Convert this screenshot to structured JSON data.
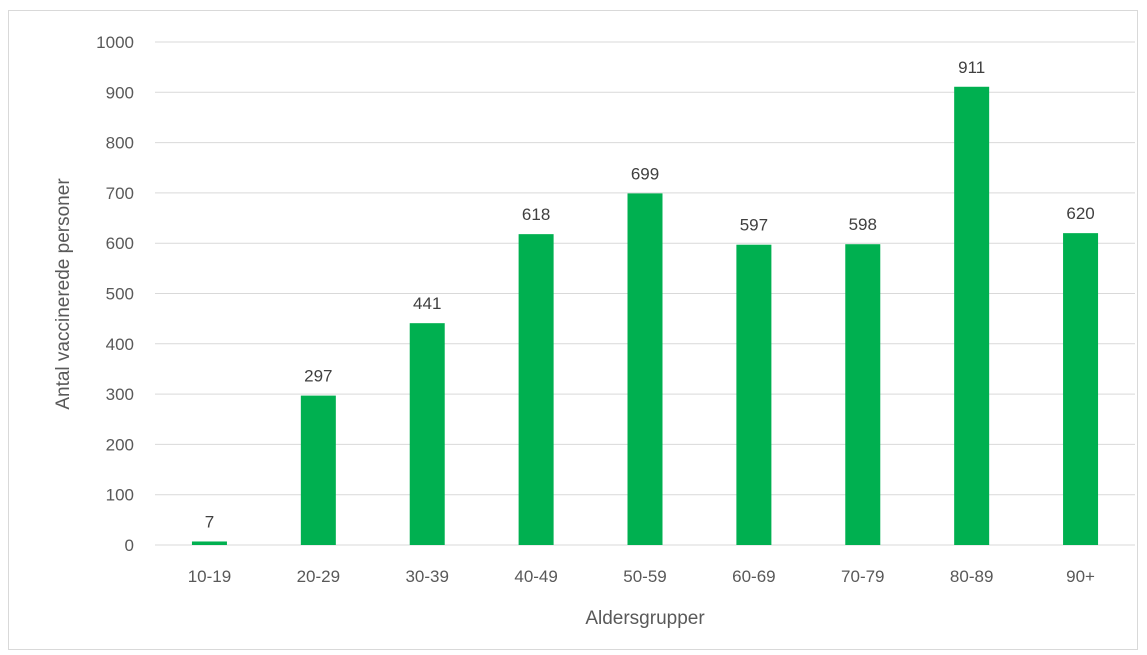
{
  "chart_data": {
    "type": "bar",
    "categories": [
      "10-19",
      "20-29",
      "30-39",
      "40-49",
      "50-59",
      "60-69",
      "70-79",
      "80-89",
      "90+"
    ],
    "values": [
      7,
      297,
      441,
      618,
      699,
      597,
      598,
      911,
      620
    ],
    "title": "",
    "xlabel": "Aldersgrupper",
    "ylabel": "Antal vaccinerede personer",
    "ylim": [
      0,
      1000
    ],
    "yticks": [
      0,
      100,
      200,
      300,
      400,
      500,
      600,
      700,
      800,
      900,
      1000
    ],
    "grid": true,
    "legend": "none",
    "data_labels": true,
    "colors": {
      "bar": "#00b050",
      "grid": "#d9d9d9",
      "axis_text": "#595959",
      "border": "#d9d9d9"
    }
  }
}
